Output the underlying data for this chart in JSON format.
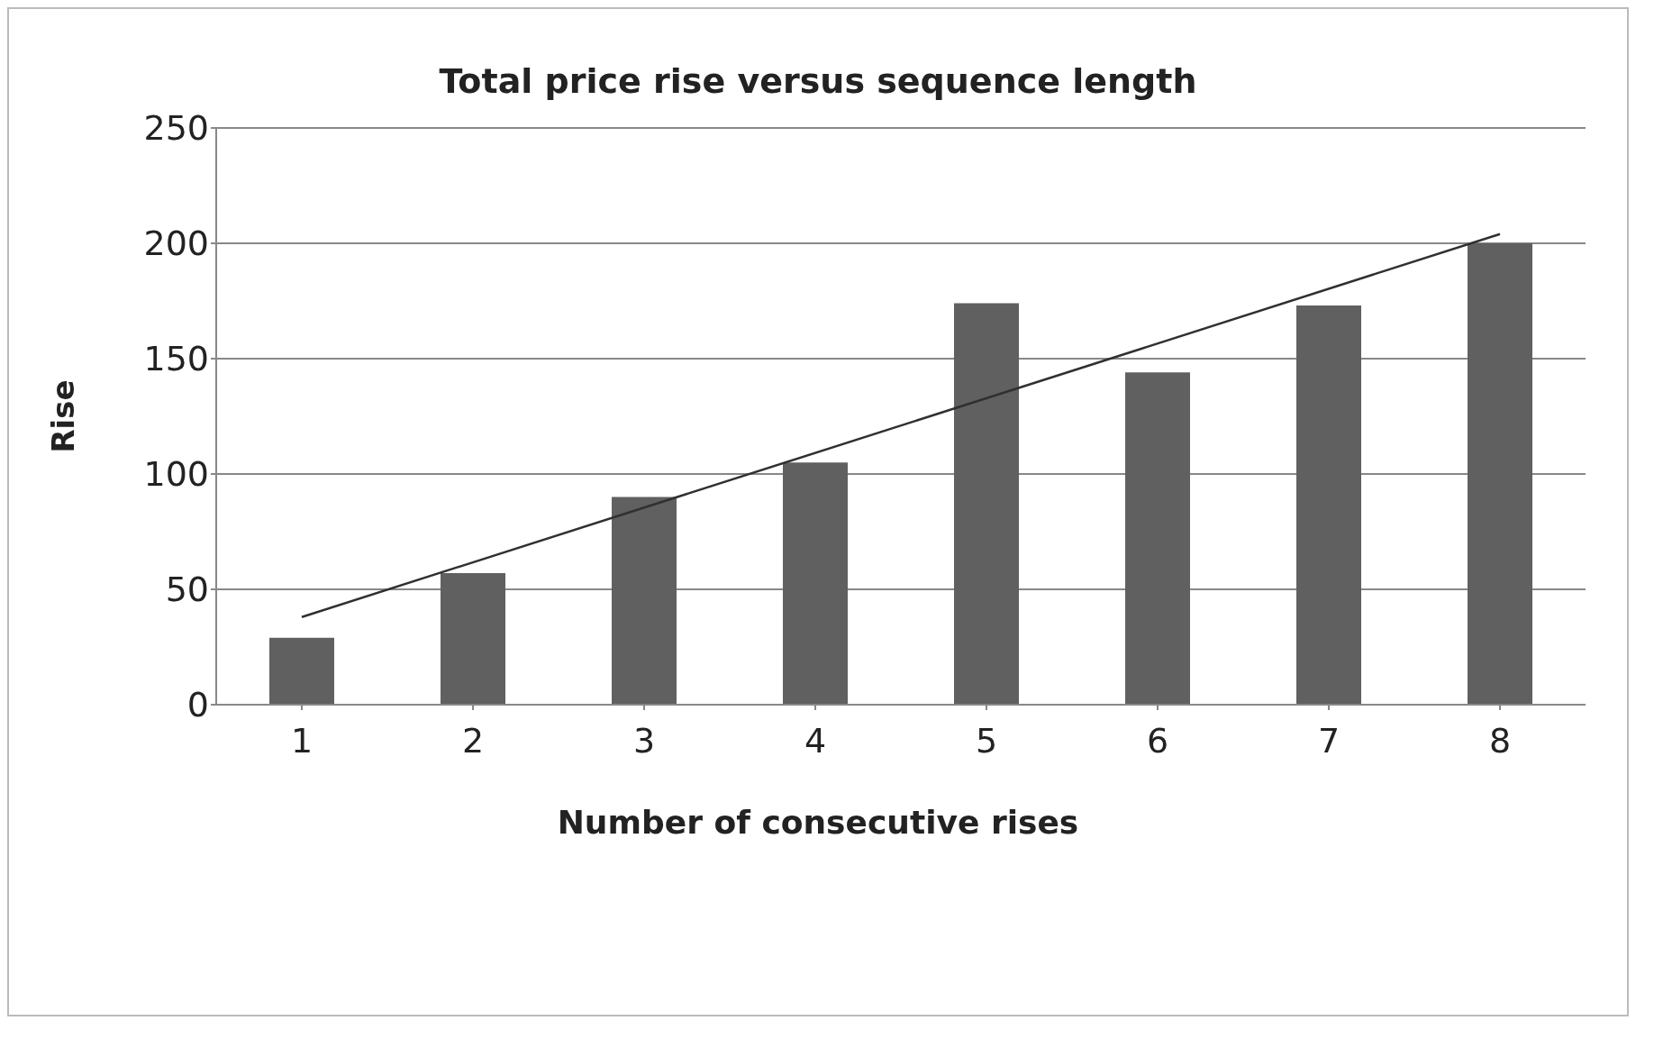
{
  "chart_data": {
    "type": "bar",
    "title": "Total price rise versus sequence length",
    "xlabel": "Number of consecutive rises",
    "ylabel": "Rise",
    "categories": [
      "1",
      "2",
      "3",
      "4",
      "5",
      "6",
      "7",
      "8"
    ],
    "series": [
      {
        "color": "#606060",
        "values": [
          29,
          57,
          90,
          105,
          174,
          144,
          173,
          200
        ]
      },
      {
        "type": "line",
        "color": "#303030",
        "x": [
          "1",
          "8"
        ],
        "values": [
          38,
          204
        ]
      }
    ],
    "ylim": [
      0,
      250
    ],
    "yticks": [
      0,
      50,
      100,
      150,
      200,
      250
    ],
    "grid": "y",
    "legend": false,
    "marker": "none",
    "line_style": "solid"
  }
}
